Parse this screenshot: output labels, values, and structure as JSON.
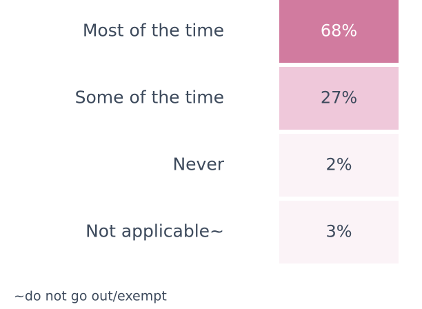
{
  "chart_data": {
    "type": "heatmap",
    "categories": [
      "Most of the time",
      "Some of the time",
      "Never",
      "Not applicable~"
    ],
    "values": [
      68,
      27,
      2,
      3
    ],
    "value_labels": [
      "68%",
      "27%",
      "2%",
      "3%"
    ],
    "colors": [
      "#d17b9f",
      "#efc8da",
      "#fbf3f7",
      "#fbf3f7"
    ],
    "label_colors": [
      "#ffffff",
      "#3d4a5c",
      "#3d4a5c",
      "#3d4a5c"
    ],
    "annotation": "~do not go out/exempt"
  }
}
